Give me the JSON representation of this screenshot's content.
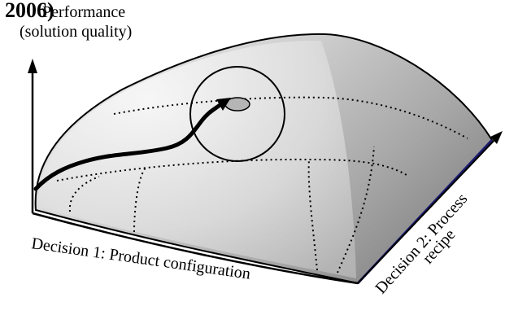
{
  "overlay_code": "2006)",
  "axis_y": {
    "line1": "Performance",
    "line2": "(solution quality)"
  },
  "axis_x": {
    "label": "Decision 1: Product configuration"
  },
  "axis_z": {
    "line1": "Decision 2: Process",
    "line2": "recipe"
  },
  "colors": {
    "surface_light": "#f2f2f2",
    "surface_dark": "#7a7a7a",
    "outline": "#000000",
    "optimum_fill": "#b5b5b5",
    "right_edge": "#1a1a6e"
  }
}
